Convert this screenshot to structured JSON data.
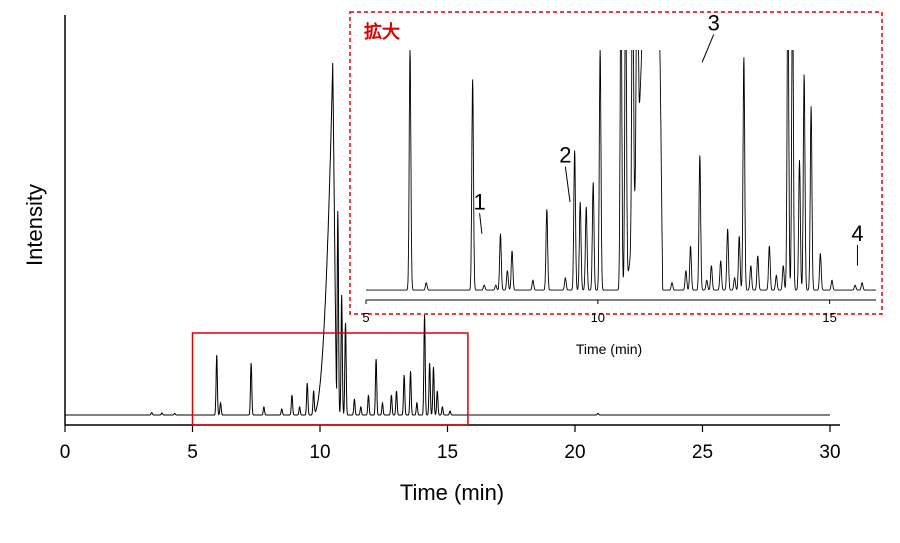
{
  "chart_data": [
    {
      "type": "line",
      "name": "main-chromatogram",
      "xlabel": "Time (min)",
      "ylabel": "Intensity",
      "xlim": [
        0,
        30
      ],
      "ylim": [
        0,
        100
      ],
      "xticks": [
        "0",
        "5",
        "10",
        "15",
        "20",
        "25",
        "30"
      ],
      "xtick_values": [
        0,
        5,
        10,
        15,
        20,
        25,
        30
      ],
      "zoom_box": {
        "x_from": 5.0,
        "x_to": 15.8,
        "y_from": 0,
        "y_to": 23,
        "color": "#e00000"
      },
      "baseline": 2.5,
      "broad_peak": {
        "start": 9.7,
        "top": 10.5,
        "end": 10.65,
        "height": 88
      },
      "peaks": [
        {
          "t": 3.4,
          "h": 0.6
        },
        {
          "t": 3.8,
          "h": 0.5
        },
        {
          "t": 4.3,
          "h": 0.4
        },
        {
          "t": 5.95,
          "h": 15
        },
        {
          "t": 6.1,
          "h": 3
        },
        {
          "t": 7.3,
          "h": 13
        },
        {
          "t": 7.8,
          "h": 2
        },
        {
          "t": 8.5,
          "h": 1.5
        },
        {
          "t": 8.9,
          "h": 5
        },
        {
          "t": 9.2,
          "h": 2
        },
        {
          "t": 9.5,
          "h": 8
        },
        {
          "t": 9.75,
          "h": 6
        },
        {
          "t": 10.7,
          "h": 51
        },
        {
          "t": 10.85,
          "h": 30
        },
        {
          "t": 11.0,
          "h": 23
        },
        {
          "t": 11.35,
          "h": 4
        },
        {
          "t": 11.6,
          "h": 2
        },
        {
          "t": 11.9,
          "h": 5
        },
        {
          "t": 12.2,
          "h": 14
        },
        {
          "t": 12.45,
          "h": 3
        },
        {
          "t": 12.8,
          "h": 5
        },
        {
          "t": 13.0,
          "h": 6
        },
        {
          "t": 13.3,
          "h": 10
        },
        {
          "t": 13.55,
          "h": 11
        },
        {
          "t": 13.8,
          "h": 3
        },
        {
          "t": 14.1,
          "h": 25
        },
        {
          "t": 14.3,
          "h": 13
        },
        {
          "t": 14.45,
          "h": 12
        },
        {
          "t": 14.6,
          "h": 6
        },
        {
          "t": 14.8,
          "h": 2
        },
        {
          "t": 15.1,
          "h": 1
        },
        {
          "t": 20.9,
          "h": 0.4
        }
      ]
    },
    {
      "type": "line",
      "name": "zoomed-chromatogram",
      "title": "拡大",
      "xlabel": "Time (min)",
      "xlim": [
        5,
        16
      ],
      "xticks": [
        "5",
        "10",
        "15"
      ],
      "xtick_values": [
        5,
        10,
        15
      ],
      "ylim": [
        0,
        100
      ],
      "baseline": 2,
      "broad_peak": {
        "start": 10.5,
        "top": 11.2,
        "end": 11.4,
        "height": 300
      },
      "peaks": [
        {
          "t": 5.95,
          "h": 98
        },
        {
          "t": 6.3,
          "h": 3
        },
        {
          "t": 7.3,
          "h": 86
        },
        {
          "t": 7.8,
          "h": 2
        },
        {
          "t": 7.55,
          "h": 2
        },
        {
          "t": 7.9,
          "h": 23
        },
        {
          "t": 8.05,
          "h": 8
        },
        {
          "t": 8.15,
          "h": 16
        },
        {
          "t": 8.6,
          "h": 4
        },
        {
          "t": 8.9,
          "h": 33
        },
        {
          "t": 9.3,
          "h": 5
        },
        {
          "t": 9.5,
          "h": 57
        },
        {
          "t": 9.62,
          "h": 36
        },
        {
          "t": 9.75,
          "h": 34
        },
        {
          "t": 9.9,
          "h": 44
        },
        {
          "t": 10.05,
          "h": 98
        },
        {
          "t": 10.5,
          "h": 130
        },
        {
          "t": 10.6,
          "h": 130
        },
        {
          "t": 10.75,
          "h": 130
        },
        {
          "t": 10.85,
          "h": 130
        },
        {
          "t": 11.0,
          "h": 130
        },
        {
          "t": 11.1,
          "h": 130
        },
        {
          "t": 11.35,
          "h": 8
        },
        {
          "t": 11.6,
          "h": 3
        },
        {
          "t": 11.9,
          "h": 8
        },
        {
          "t": 12.0,
          "h": 18
        },
        {
          "t": 12.2,
          "h": 55
        },
        {
          "t": 12.35,
          "h": 4
        },
        {
          "t": 12.45,
          "h": 10
        },
        {
          "t": 12.65,
          "h": 12
        },
        {
          "t": 12.8,
          "h": 25
        },
        {
          "t": 12.95,
          "h": 5
        },
        {
          "t": 13.05,
          "h": 22
        },
        {
          "t": 13.15,
          "h": 95
        },
        {
          "t": 13.3,
          "h": 10
        },
        {
          "t": 13.45,
          "h": 14
        },
        {
          "t": 13.7,
          "h": 18
        },
        {
          "t": 13.85,
          "h": 6
        },
        {
          "t": 14.0,
          "h": 10
        },
        {
          "t": 14.1,
          "h": 130
        },
        {
          "t": 14.2,
          "h": 130
        },
        {
          "t": 14.35,
          "h": 53
        },
        {
          "t": 14.45,
          "h": 88
        },
        {
          "t": 14.6,
          "h": 75
        },
        {
          "t": 14.8,
          "h": 15
        },
        {
          "t": 15.05,
          "h": 4
        },
        {
          "t": 15.55,
          "h": 2
        },
        {
          "t": 15.7,
          "h": 3
        }
      ],
      "annotations": [
        {
          "label": "1",
          "t": 7.5,
          "text_t": 7.45,
          "tip_h": 25,
          "text_h": 35
        },
        {
          "label": "2",
          "t": 9.4,
          "text_t": 9.3,
          "tip_h": 38,
          "text_h": 54
        },
        {
          "label": "3",
          "t": 12.25,
          "text_t": 12.5,
          "tip_h": 95,
          "text_h": 108
        },
        {
          "label": "4",
          "t": 15.6,
          "text_t": 15.6,
          "tip_h": 12,
          "text_h": 22
        }
      ]
    }
  ]
}
